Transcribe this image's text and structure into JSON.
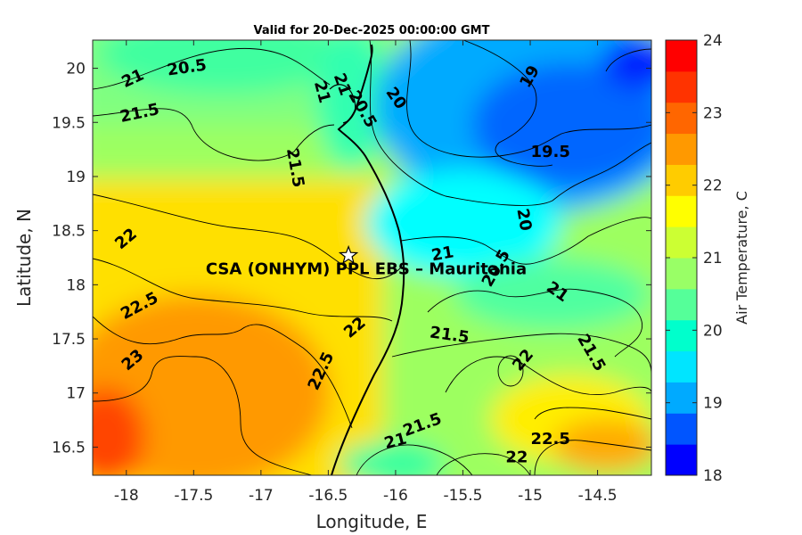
{
  "chart_data": {
    "type": "heatmap",
    "title": "Valid for 20-Dec-2025 00:00:00 GMT",
    "xlabel": "Longitude, E",
    "ylabel": "Latitude, N",
    "xlim": [
      -18.25,
      -14.1
    ],
    "ylim": [
      16.24,
      20.26
    ],
    "xticks": [
      -18,
      -17.5,
      -17,
      -16.5,
      -16,
      -15.5,
      -15,
      -14.5
    ],
    "xtick_labels": [
      "-18",
      "-17.5",
      "-17",
      "-16.5",
      "-16",
      "-15.5",
      "-15",
      "-14.5"
    ],
    "yticks": [
      16.5,
      17,
      17.5,
      18,
      18.5,
      19,
      19.5,
      20
    ],
    "ytick_labels": [
      "16.5",
      "17",
      "17.5",
      "18",
      "18.5",
      "19",
      "19.5",
      "20"
    ],
    "colorbar": {
      "label": "Air Temperature, C",
      "min": 18,
      "max": 24,
      "ticks": [
        18,
        19,
        20,
        21,
        22,
        23,
        24
      ],
      "tick_labels": [
        "18",
        "19",
        "20",
        "21",
        "22",
        "23",
        "24"
      ],
      "colors": [
        "#0000ff",
        "#0055ff",
        "#00aaff",
        "#00e5ff",
        "#00ffcc",
        "#55ff99",
        "#99ff66",
        "#ccff33",
        "#ffff00",
        "#ffcc00",
        "#ff9900",
        "#ff6600",
        "#ff3300",
        "#ff0000"
      ]
    },
    "contour_labels": [
      {
        "text": "20.5",
        "lon": -17.55,
        "lat": 20.0,
        "angle": 8
      },
      {
        "text": "21",
        "lon": -17.95,
        "lat": 19.9,
        "angle": 25
      },
      {
        "text": "21.5",
        "lon": -17.9,
        "lat": 19.58,
        "angle": 12
      },
      {
        "text": "21.5",
        "lon": -16.75,
        "lat": 19.08,
        "angle": -80
      },
      {
        "text": "20.5",
        "lon": -16.25,
        "lat": 19.62,
        "angle": -60
      },
      {
        "text": "21",
        "lon": -16.4,
        "lat": 19.85,
        "angle": -70
      },
      {
        "text": "21",
        "lon": -16.55,
        "lat": 19.78,
        "angle": -75
      },
      {
        "text": "20",
        "lon": -16.0,
        "lat": 19.72,
        "angle": -55
      },
      {
        "text": "19",
        "lon": -15.0,
        "lat": 19.92,
        "angle": 60
      },
      {
        "text": "19.5",
        "lon": -14.85,
        "lat": 19.22,
        "angle": 0
      },
      {
        "text": "20",
        "lon": -15.05,
        "lat": 18.6,
        "angle": -80
      },
      {
        "text": "22",
        "lon": -18.0,
        "lat": 18.42,
        "angle": 40
      },
      {
        "text": "21",
        "lon": -15.65,
        "lat": 18.28,
        "angle": 10
      },
      {
        "text": "20.5",
        "lon": -15.25,
        "lat": 18.15,
        "angle": 60
      },
      {
        "text": "21",
        "lon": -14.8,
        "lat": 17.93,
        "angle": -35
      },
      {
        "text": "22.5",
        "lon": -17.9,
        "lat": 17.8,
        "angle": 28
      },
      {
        "text": "22",
        "lon": -16.3,
        "lat": 17.6,
        "angle": 40
      },
      {
        "text": "21.5",
        "lon": -15.6,
        "lat": 17.53,
        "angle": -8
      },
      {
        "text": "21.5",
        "lon": -14.55,
        "lat": 17.37,
        "angle": -60
      },
      {
        "text": "23",
        "lon": -17.95,
        "lat": 17.3,
        "angle": 40
      },
      {
        "text": "22.5",
        "lon": -16.55,
        "lat": 17.2,
        "angle": 65
      },
      {
        "text": "22",
        "lon": -15.05,
        "lat": 17.3,
        "angle": 50
      },
      {
        "text": "21.5",
        "lon": -15.8,
        "lat": 16.7,
        "angle": 20
      },
      {
        "text": "21",
        "lon": -16.0,
        "lat": 16.55,
        "angle": 15
      },
      {
        "text": "22.5",
        "lon": -14.85,
        "lat": 16.57,
        "angle": 0
      },
      {
        "text": "22",
        "lon": -15.1,
        "lat": 16.4,
        "angle": 0
      }
    ],
    "marker": {
      "label": "CSA (ONHYM) PPL EBS  – Mauritania",
      "lon": -16.35,
      "lat": 18.27,
      "symbol": "star"
    }
  }
}
